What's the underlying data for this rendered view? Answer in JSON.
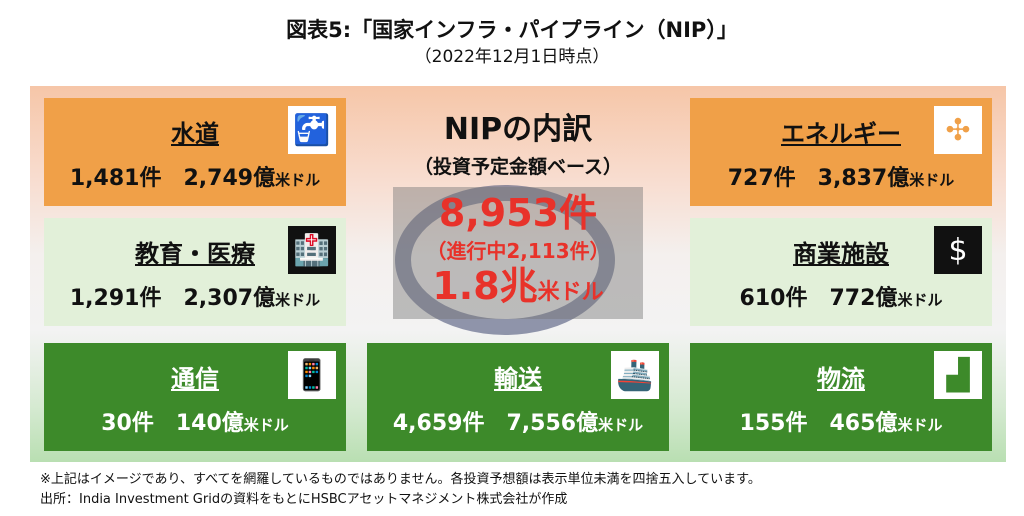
{
  "title": "図表5:「国家インフラ・パイプライン（NIP）」",
  "subtitle": "（2022年12月1日時点）",
  "unit": "米ドル",
  "count_suffix": "件",
  "amount_suffix": "億",
  "sectors": [
    {
      "name": "水道",
      "count": "1,481",
      "amount": "2,749",
      "icon": "faucet-icon"
    },
    {
      "name": "教育・医療",
      "count": "1,291",
      "amount": "2,307",
      "icon": "hospital-icon"
    },
    {
      "name": "通信",
      "count": "30",
      "amount": "140",
      "icon": "mobile-phone-icon"
    },
    {
      "name": "輸送",
      "count": "4,659",
      "amount": "7,556",
      "icon": "ship-icon"
    },
    {
      "name": "エネルギー",
      "count": "727",
      "amount": "3,837",
      "icon": "wind-turbine-icon"
    },
    {
      "name": "商業施設",
      "count": "610",
      "amount": "772",
      "icon": "money-bag-icon"
    },
    {
      "name": "物流",
      "count": "155",
      "amount": "465",
      "icon": "forklift-icon"
    }
  ],
  "center": {
    "title": "NIPの内訳",
    "sub": "（投資予定金額ベース）",
    "total": "8,953件",
    "ongoing": "（進行中2,113件）",
    "amount": "1.8兆",
    "amount_unit": "米ドル"
  },
  "notes": [
    "※上記はイメージであり、すべてを網羅しているものではありません。各投資予想額は表示単位未満を四捨五入しています。",
    "出所：India Investment Gridの資料をもとにHSBCアセットマネジメント株式会社が作成"
  ]
}
